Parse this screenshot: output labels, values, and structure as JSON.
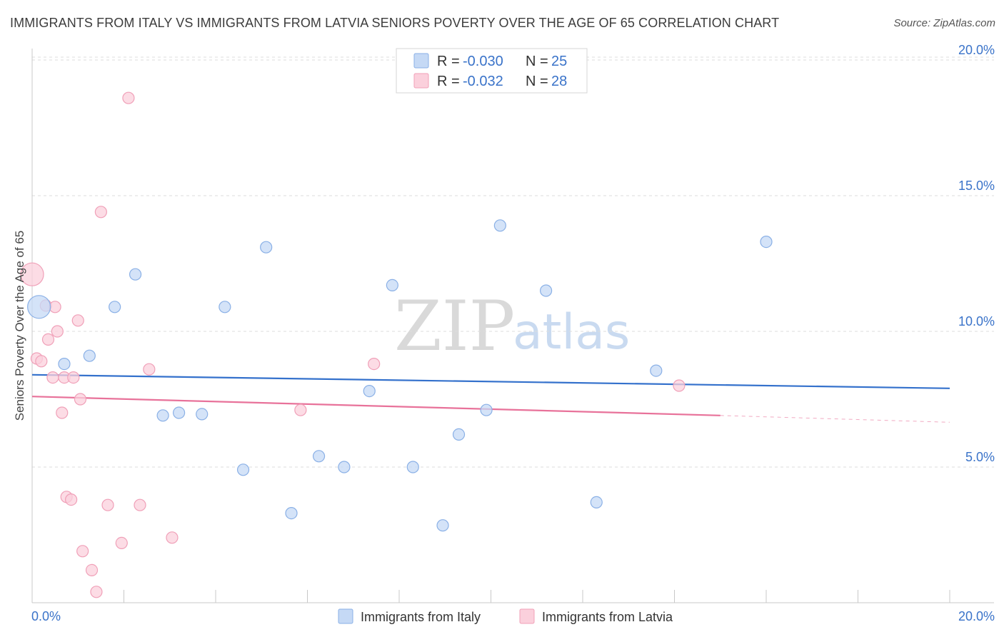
{
  "title": "IMMIGRANTS FROM ITALY VS IMMIGRANTS FROM LATVIA SENIORS POVERTY OVER THE AGE OF 65 CORRELATION CHART",
  "source": "Source: ZipAtlas.com",
  "watermark": {
    "zip": "ZIP",
    "atlas": "atlas"
  },
  "colors": {
    "italy_fill": "#c5d9f5",
    "italy_stroke": "#8ab0e6",
    "italy_line": "#3471cc",
    "latvia_fill": "#fbd0dc",
    "latvia_stroke": "#f0a0b8",
    "latvia_line": "#e8729a",
    "axis_text": "#3a73c9",
    "grid": "#dddddd"
  },
  "legend": {
    "r_label": "R =",
    "n_label": "N =",
    "italy": {
      "r": "-0.030",
      "n": "25"
    },
    "latvia": {
      "r": "-0.032",
      "n": "28"
    }
  },
  "chart_data": {
    "type": "scatter",
    "title": "IMMIGRANTS FROM ITALY VS IMMIGRANTS FROM LATVIA SENIORS POVERTY OVER THE AGE OF 65 CORRELATION CHART",
    "xlabel": "",
    "ylabel": "Seniors Poverty Over the Age of 65",
    "xlim": [
      0,
      20
    ],
    "ylim": [
      0,
      20.5
    ],
    "x_tick_labels": {
      "min": "0.0%",
      "max": "20.0%"
    },
    "y_ticks": [
      {
        "value": 5,
        "label": "5.0%"
      },
      {
        "value": 10,
        "label": "10.0%"
      },
      {
        "value": 15,
        "label": "15.0%"
      },
      {
        "value": 20,
        "label": "20.0%"
      }
    ],
    "series": [
      {
        "name": "Immigrants from Italy",
        "points": [
          {
            "x": 0.15,
            "y": 10.9,
            "big": true
          },
          {
            "x": 0.7,
            "y": 8.8
          },
          {
            "x": 1.25,
            "y": 9.1
          },
          {
            "x": 1.8,
            "y": 10.9
          },
          {
            "x": 2.25,
            "y": 12.1
          },
          {
            "x": 2.85,
            "y": 6.9
          },
          {
            "x": 3.2,
            "y": 7.0
          },
          {
            "x": 3.7,
            "y": 6.95
          },
          {
            "x": 4.2,
            "y": 10.9
          },
          {
            "x": 4.6,
            "y": 4.9
          },
          {
            "x": 5.1,
            "y": 13.1
          },
          {
            "x": 5.65,
            "y": 3.3
          },
          {
            "x": 6.25,
            "y": 5.4
          },
          {
            "x": 6.8,
            "y": 5.0
          },
          {
            "x": 7.35,
            "y": 7.8
          },
          {
            "x": 7.85,
            "y": 11.7
          },
          {
            "x": 8.3,
            "y": 5.0
          },
          {
            "x": 8.95,
            "y": 2.85
          },
          {
            "x": 9.3,
            "y": 6.2
          },
          {
            "x": 9.9,
            "y": 7.1
          },
          {
            "x": 10.2,
            "y": 13.9
          },
          {
            "x": 11.2,
            "y": 11.5
          },
          {
            "x": 12.3,
            "y": 3.7
          },
          {
            "x": 13.6,
            "y": 8.55
          },
          {
            "x": 16.0,
            "y": 13.3
          }
        ],
        "trend": {
          "x0": 0,
          "y0": 8.4,
          "x1": 20,
          "y1": 7.9
        }
      },
      {
        "name": "Immigrants from Latvia",
        "points": [
          {
            "x": 0.0,
            "y": 12.1,
            "big": true
          },
          {
            "x": 0.1,
            "y": 9.0
          },
          {
            "x": 0.2,
            "y": 8.9
          },
          {
            "x": 0.3,
            "y": 10.95
          },
          {
            "x": 0.35,
            "y": 9.7
          },
          {
            "x": 0.45,
            "y": 8.3
          },
          {
            "x": 0.5,
            "y": 10.9
          },
          {
            "x": 0.55,
            "y": 10.0
          },
          {
            "x": 0.65,
            "y": 7.0
          },
          {
            "x": 0.7,
            "y": 8.3
          },
          {
            "x": 0.75,
            "y": 3.9
          },
          {
            "x": 0.85,
            "y": 3.8
          },
          {
            "x": 0.9,
            "y": 8.3
          },
          {
            "x": 1.0,
            "y": 10.4
          },
          {
            "x": 1.05,
            "y": 7.5
          },
          {
            "x": 1.1,
            "y": 1.9
          },
          {
            "x": 1.3,
            "y": 1.2
          },
          {
            "x": 1.4,
            "y": 0.4
          },
          {
            "x": 1.5,
            "y": 14.4
          },
          {
            "x": 1.65,
            "y": 3.6
          },
          {
            "x": 1.95,
            "y": 2.2
          },
          {
            "x": 2.1,
            "y": 18.6
          },
          {
            "x": 2.35,
            "y": 3.6
          },
          {
            "x": 2.55,
            "y": 8.6
          },
          {
            "x": 3.05,
            "y": 2.4
          },
          {
            "x": 5.85,
            "y": 7.1
          },
          {
            "x": 7.45,
            "y": 8.8
          },
          {
            "x": 14.1,
            "y": 8.0
          }
        ],
        "trend": {
          "x0": 0,
          "y0": 7.6,
          "x1": 15,
          "y1": 6.9
        },
        "trend_dashed": {
          "x0": 15,
          "y0": 6.9,
          "x1": 20,
          "y1": 6.65
        }
      }
    ]
  }
}
